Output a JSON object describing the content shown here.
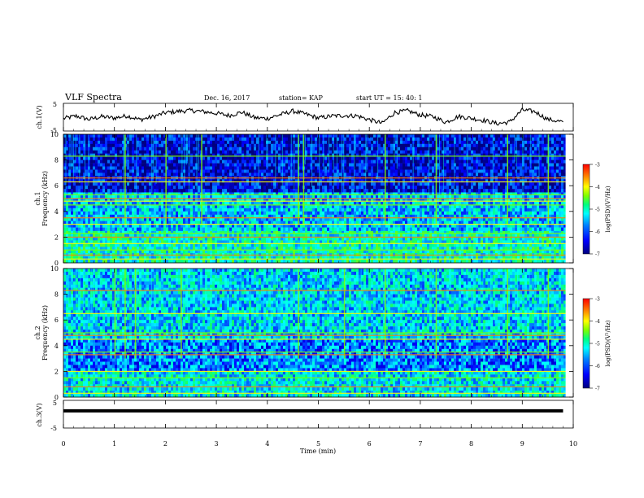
{
  "header": {
    "title": "VLF Spectra",
    "date": "Dec. 16, 2017",
    "station": "station= KAP",
    "start": "start  UT =   15: 40: 1"
  },
  "chart_data": [
    {
      "type": "line",
      "name": "ch1-waveform",
      "ylabel": "ch.1(V)",
      "ylim": [
        -5,
        5
      ],
      "yticks": [
        "5",
        "-5"
      ],
      "xlim": [
        0,
        10
      ],
      "x": [
        0,
        0.25,
        0.5,
        0.75,
        1,
        1.25,
        1.5,
        1.75,
        2,
        2.25,
        2.5,
        2.75,
        3,
        3.25,
        3.5,
        3.75,
        4,
        4.25,
        4.5,
        4.75,
        5,
        5.25,
        5.5,
        5.75,
        6,
        6.25,
        6.5,
        6.75,
        7,
        7.25,
        7.5,
        7.75,
        8,
        8.25,
        8.5,
        8.75,
        9,
        9.25,
        9.5,
        9.8
      ],
      "y": [
        -0.5,
        0.4,
        -0.8,
        0.2,
        -0.3,
        0.5,
        -0.9,
        0.1,
        1.6,
        2.1,
        2.4,
        2.0,
        1.4,
        0.6,
        1.8,
        -0.2,
        -0.5,
        0.9,
        2.2,
        1.1,
        -0.3,
        0.4,
        0.6,
        0.5,
        -0.9,
        -2.2,
        1.7,
        2.3,
        0.8,
        0.2,
        -1.8,
        0.3,
        -0.4,
        -1.2,
        -2.3,
        -1.8,
        2.6,
        2.0,
        -0.8,
        -1.7
      ]
    },
    {
      "type": "heatmap",
      "name": "ch1-spectrogram",
      "ylabel": "ch.1\nFrequency (kHz)",
      "ylim": [
        0,
        10
      ],
      "yticks": [
        "0",
        "2",
        "4",
        "6",
        "8",
        "10"
      ],
      "xlim": [
        0,
        10
      ],
      "colorbar": {
        "label": "log(PSD)(V²/Hz)",
        "range": [
          -7,
          -3
        ],
        "ticks": [
          "-3",
          "-4",
          "-5",
          "-6",
          "-7"
        ]
      },
      "bands_khz": [
        {
          "from": 0,
          "to": 2.5,
          "level": -5.3
        },
        {
          "from": 2.5,
          "to": 5.5,
          "level": -5.7
        },
        {
          "from": 5.5,
          "to": 10,
          "level": -6.6
        }
      ],
      "lines_khz": [
        0.3,
        0.6,
        1.0,
        1.5,
        2.0,
        2.3,
        3.0,
        3.5,
        4.5,
        4.8,
        5.0,
        5.3,
        6.3,
        6.6,
        8.3
      ],
      "bursts_min": [
        1.2,
        2.0,
        2.7,
        4.6,
        4.7,
        6.3,
        7.3,
        8.7,
        9.5
      ]
    },
    {
      "type": "heatmap",
      "name": "ch2-spectrogram",
      "ylabel": "ch.2\nFrequency (kHz)",
      "ylim": [
        0,
        10
      ],
      "yticks": [
        "0",
        "2",
        "4",
        "6",
        "8",
        "10"
      ],
      "xlim": [
        0,
        10
      ],
      "colorbar": {
        "label": "log(PSD)(V²/Hz)",
        "range": [
          -7,
          -3
        ],
        "ticks": [
          "-3",
          "-4",
          "-5",
          "-6",
          "-7"
        ]
      },
      "bands_khz": [
        {
          "from": 0,
          "to": 2.0,
          "level": -5.5
        },
        {
          "from": 2.0,
          "to": 4.5,
          "level": -6.0
        },
        {
          "from": 4.5,
          "to": 10,
          "level": -5.6
        }
      ],
      "lines_khz": [
        0.3,
        0.8,
        1.5,
        2.0,
        3.3,
        3.5,
        4.5,
        4.8,
        5.0,
        6.5,
        8.3
      ],
      "bursts_min": [
        1.0,
        1.2,
        1.4,
        2.3,
        4.6,
        5.5,
        6.3,
        7.3,
        8.7,
        9.5
      ]
    },
    {
      "type": "line",
      "name": "ch3-waveform",
      "ylabel": "ch.3(V)",
      "ylim": [
        -5,
        5
      ],
      "yticks": [
        "5",
        "-5"
      ],
      "xlim": [
        0,
        10
      ],
      "x": [
        0,
        9.8
      ],
      "y": [
        1.2,
        1.2
      ]
    }
  ],
  "x_axis": {
    "label": "Time (min)",
    "ticks": [
      "0",
      "1",
      "2",
      "3",
      "4",
      "5",
      "6",
      "7",
      "8",
      "9",
      "10"
    ]
  },
  "colors": {
    "colormap": [
      "#00007f",
      "#0000ff",
      "#0080ff",
      "#00ffff",
      "#00ff7f",
      "#7fff00",
      "#ffff00",
      "#ff8000",
      "#ff0000"
    ]
  }
}
